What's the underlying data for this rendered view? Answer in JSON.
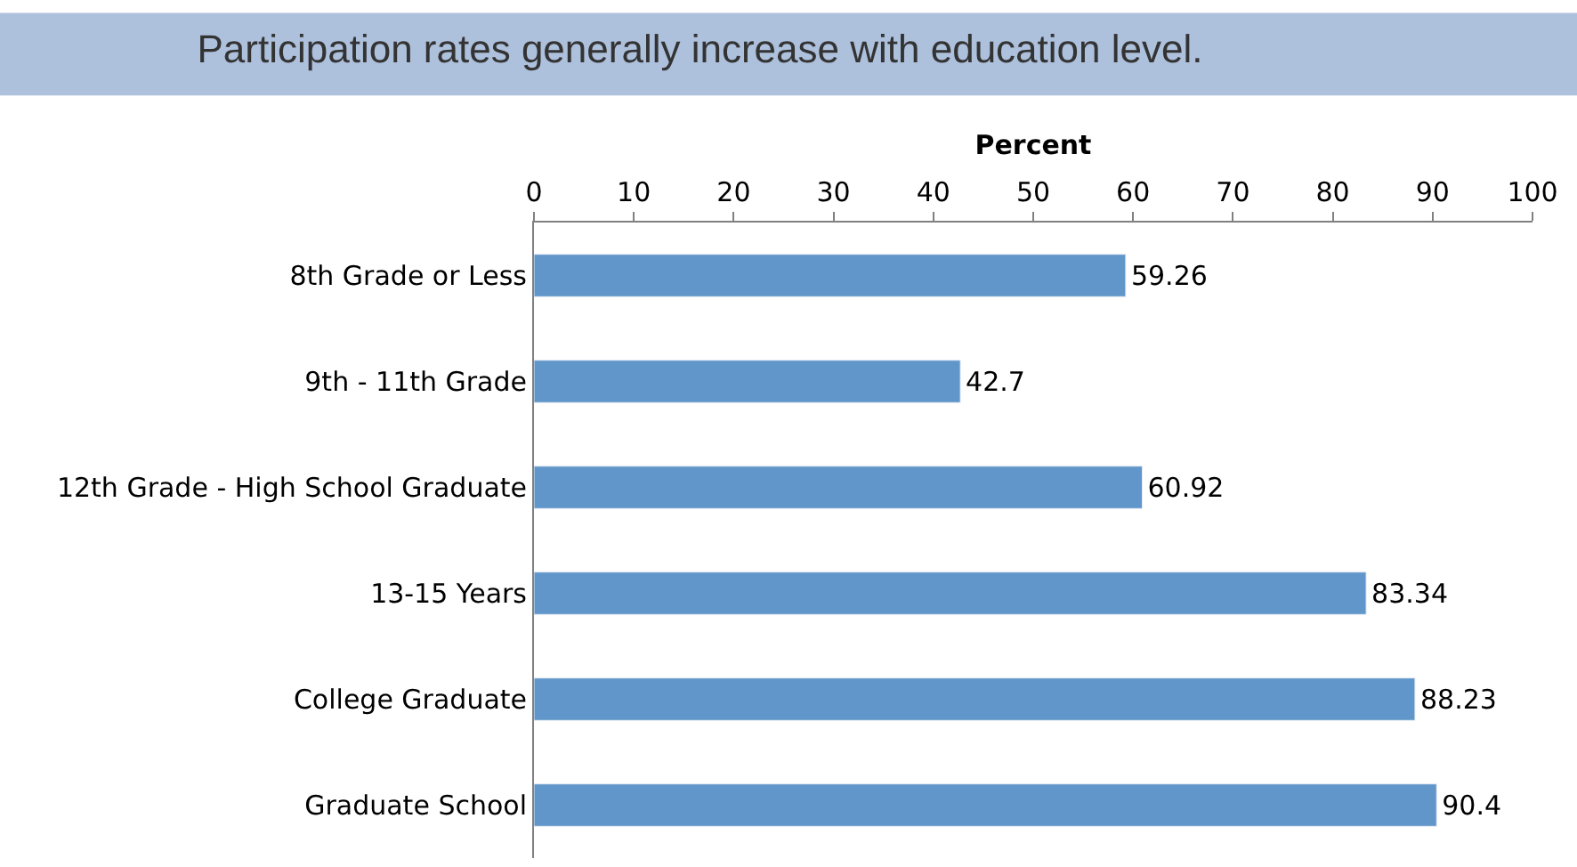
{
  "chart_data": {
    "type": "bar",
    "orientation": "horizontal",
    "title": "Participation rates generally increase with education level.",
    "xlabel": "Percent",
    "categories": [
      "8th Grade or Less",
      "9th - 11th Grade",
      "12th Grade - High School Graduate",
      "13-15 Years",
      "College Graduate",
      "Graduate School"
    ],
    "values": [
      59.26,
      42.7,
      60.92,
      83.34,
      88.23,
      90.4
    ],
    "color": "#6096c9",
    "xlim": [
      0,
      100
    ],
    "xticks": [
      0,
      10,
      20,
      30,
      40,
      50,
      60,
      70,
      80,
      90,
      100
    ],
    "data_labels": true,
    "legend": false
  }
}
